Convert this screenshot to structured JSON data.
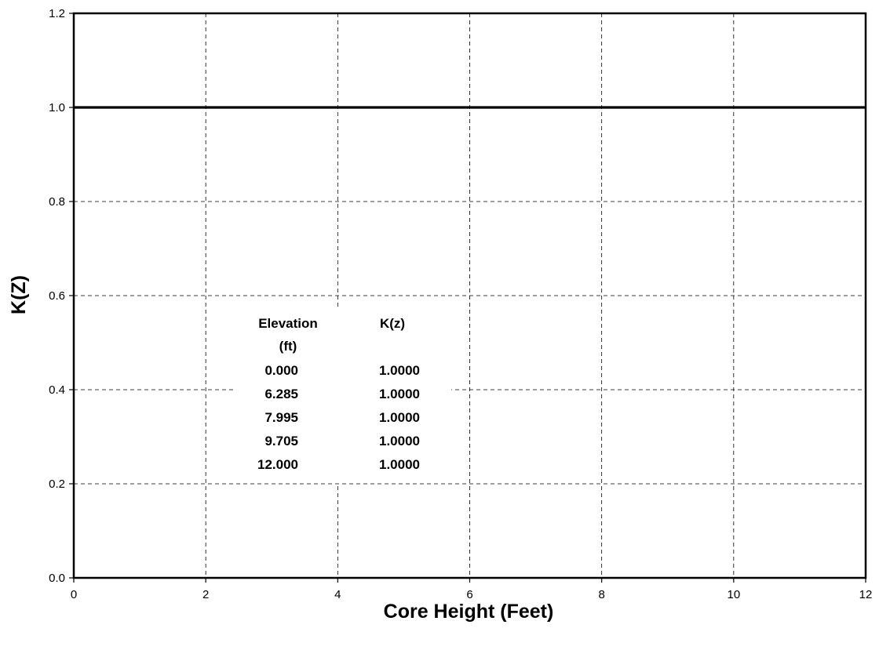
{
  "chart_data": {
    "type": "line",
    "xlabel": "Core Height (Feet)",
    "ylabel": "K(Z)",
    "xlim": [
      0,
      12
    ],
    "ylim": [
      0,
      1.2
    ],
    "x_ticks": [
      "0",
      "2",
      "4",
      "6",
      "8",
      "10",
      "12"
    ],
    "y_ticks": [
      "0.0",
      "0.2",
      "0.4",
      "0.6",
      "0.8",
      "1.0",
      "1.2"
    ],
    "grid": true,
    "series": [
      {
        "x": [
          0,
          6.285,
          7.995,
          9.705,
          12
        ],
        "y": [
          1.0,
          1.0,
          1.0,
          1.0,
          1.0
        ]
      }
    ],
    "annotation_table": {
      "headers": [
        "Elevation",
        "K(z)"
      ],
      "header_sub": "(ft)",
      "rows": [
        [
          "0.000",
          "1.0000"
        ],
        [
          "6.285",
          "1.0000"
        ],
        [
          "7.995",
          "1.0000"
        ],
        [
          "9.705",
          "1.0000"
        ],
        [
          "12.000",
          "1.0000"
        ]
      ]
    },
    "colors": {
      "line": "#000000",
      "frame": "#000000",
      "background": "#ffffff"
    }
  }
}
